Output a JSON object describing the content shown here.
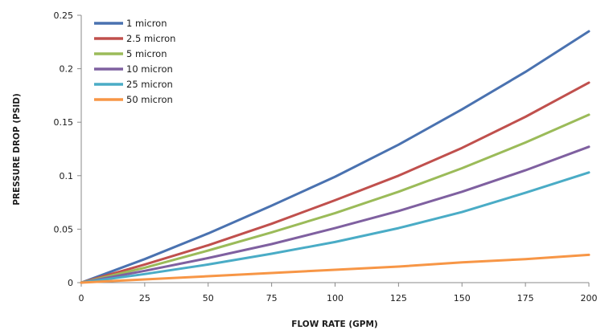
{
  "chart_data": {
    "type": "line",
    "title": "",
    "xlabel": "FLOW RATE (GPM)",
    "ylabel": "PRESSURE DROP (PSID)",
    "xlim": [
      0,
      200
    ],
    "ylim": [
      0,
      0.25
    ],
    "x_ticks": [
      "0",
      "25",
      "50",
      "75",
      "100",
      "125",
      "150",
      "175",
      "200"
    ],
    "y_ticks": [
      "0",
      "0.05",
      "0.1",
      "0.15",
      "0.2",
      "0.25"
    ],
    "grid": false,
    "legend_position": "top-left",
    "x": [
      0,
      25,
      50,
      75,
      100,
      125,
      150,
      175,
      200
    ],
    "series": [
      {
        "name": "1 micron",
        "color": "#4a72b0",
        "values": [
          0,
          0.022,
          0.046,
          0.072,
          0.099,
          0.129,
          0.162,
          0.197,
          0.235
        ]
      },
      {
        "name": "2.5 micron",
        "color": "#c0504d",
        "values": [
          0,
          0.017,
          0.035,
          0.055,
          0.077,
          0.1,
          0.126,
          0.155,
          0.187
        ]
      },
      {
        "name": "5 micron",
        "color": "#9bbb59",
        "values": [
          0,
          0.014,
          0.03,
          0.047,
          0.065,
          0.085,
          0.107,
          0.131,
          0.157
        ]
      },
      {
        "name": "10 micron",
        "color": "#7f60a0",
        "values": [
          0,
          0.011,
          0.023,
          0.036,
          0.051,
          0.067,
          0.085,
          0.105,
          0.127
        ]
      },
      {
        "name": "25 micron",
        "color": "#4aacc6",
        "values": [
          0,
          0.008,
          0.017,
          0.027,
          0.038,
          0.051,
          0.066,
          0.084,
          0.103
        ]
      },
      {
        "name": "50 micron",
        "color": "#f79646",
        "values": [
          0,
          0.003,
          0.006,
          0.009,
          0.012,
          0.015,
          0.019,
          0.022,
          0.026
        ]
      }
    ]
  }
}
